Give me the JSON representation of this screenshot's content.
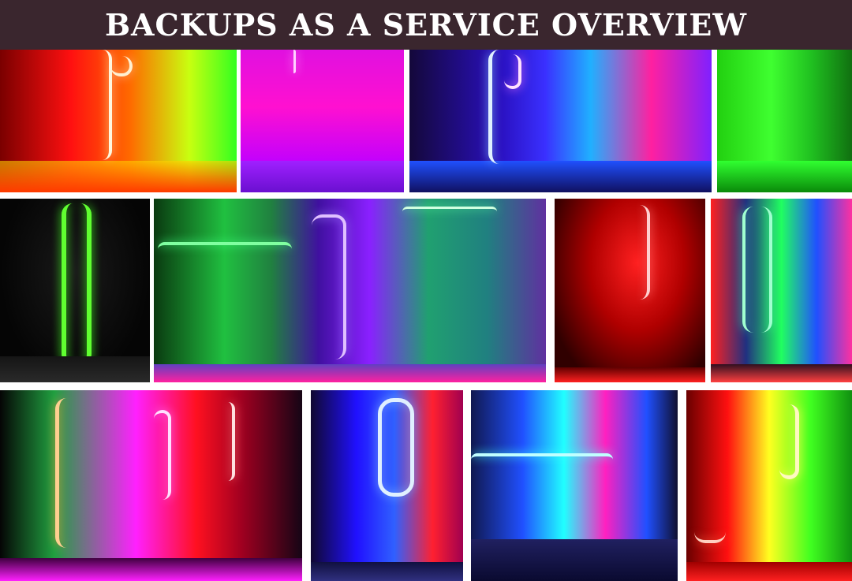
{
  "header": {
    "title": "BACKUPS AS A SERVICE OVERVIEW",
    "background": "#3a262e"
  },
  "collage": {
    "tiles": [
      {
        "name": "row1-tile1",
        "colors": [
          "#ff1010",
          "#ff7a00",
          "#f7ff1a"
        ]
      },
      {
        "name": "row1-tile2",
        "colors": [
          "#ff10ff",
          "#c000ff",
          "#a000ff"
        ]
      },
      {
        "name": "row1-tile3",
        "colors": [
          "#1a10c0",
          "#20a8ff",
          "#ff20a0"
        ]
      },
      {
        "name": "row1-tile4",
        "colors": [
          "#22ee11",
          "#3fff30",
          "#10a010"
        ]
      },
      {
        "name": "row2-tile1",
        "colors": [
          "#020202",
          "#40ff20",
          "#101010"
        ]
      },
      {
        "name": "row2-tile2",
        "colors": [
          "#20ff70",
          "#8a20ff",
          "#20c0a0"
        ]
      },
      {
        "name": "row2-tile3",
        "colors": [
          "#ff1a1a",
          "#300000",
          "#ff4040"
        ]
      },
      {
        "name": "row2-tile4",
        "colors": [
          "#ff2020",
          "#20ff60",
          "#4060ff"
        ]
      },
      {
        "name": "row3-tile1",
        "colors": [
          "#ff20ff",
          "#ff1020",
          "#20ff40"
        ]
      },
      {
        "name": "row3-tile2",
        "colors": [
          "#2010ff",
          "#ff2030",
          "#30a0ff"
        ]
      },
      {
        "name": "row3-tile3",
        "colors": [
          "#20ffff",
          "#2050ff",
          "#ff20c0"
        ]
      },
      {
        "name": "row3-tile4",
        "colors": [
          "#ff1010",
          "#ffff20",
          "#40ff20"
        ]
      }
    ]
  }
}
